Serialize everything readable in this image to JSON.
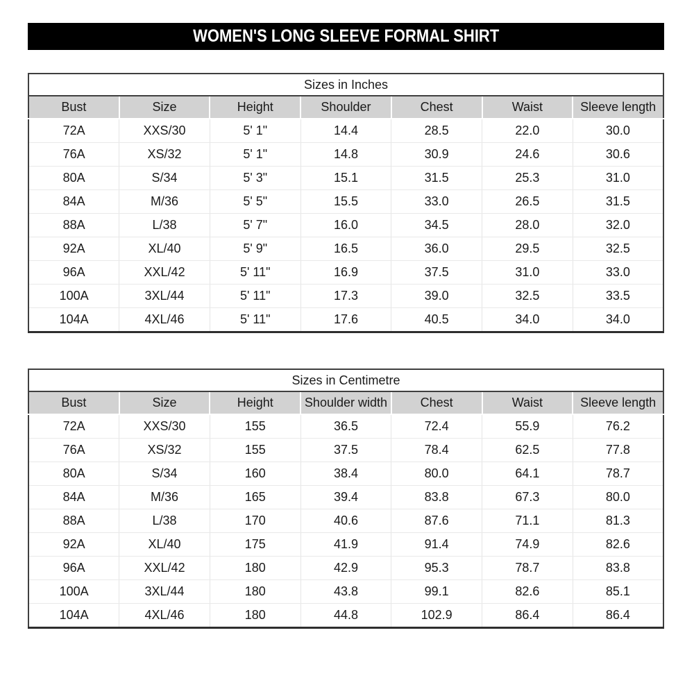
{
  "banner": {
    "title": "WOMEN'S LONG SLEEVE FORMAL SHIRT"
  },
  "tables": [
    {
      "id": "inches",
      "caption": "Sizes in Inches",
      "columns": [
        "Bust",
        "Size",
        "Height",
        "Shoulder",
        "Chest",
        "Waist",
        "Sleeve length"
      ],
      "rows": [
        [
          "72A",
          "XXS/30",
          "5' 1\"",
          "14.4",
          "28.5",
          "22.0",
          "30.0"
        ],
        [
          "76A",
          "XS/32",
          "5' 1\"",
          "14.8",
          "30.9",
          "24.6",
          "30.6"
        ],
        [
          "80A",
          "S/34",
          "5' 3\"",
          "15.1",
          "31.5",
          "25.3",
          "31.0"
        ],
        [
          "84A",
          "M/36",
          "5' 5\"",
          "15.5",
          "33.0",
          "26.5",
          "31.5"
        ],
        [
          "88A",
          "L/38",
          "5' 7\"",
          "16.0",
          "34.5",
          "28.0",
          "32.0"
        ],
        [
          "92A",
          "XL/40",
          "5' 9\"",
          "16.5",
          "36.0",
          "29.5",
          "32.5"
        ],
        [
          "96A",
          "XXL/42",
          "5' 11\"",
          "16.9",
          "37.5",
          "31.0",
          "33.0"
        ],
        [
          "100A",
          "3XL/44",
          "5' 11\"",
          "17.3",
          "39.0",
          "32.5",
          "33.5"
        ],
        [
          "104A",
          "4XL/46",
          "5' 11\"",
          "17.6",
          "40.5",
          "34.0",
          "34.0"
        ]
      ]
    },
    {
      "id": "centimetre",
      "caption": "Sizes in Centimetre",
      "columns": [
        "Bust",
        "Size",
        "Height",
        "Shoulder width",
        "Chest",
        "Waist",
        "Sleeve length"
      ],
      "rows": [
        [
          "72A",
          "XXS/30",
          "155",
          "36.5",
          "72.4",
          "55.9",
          "76.2"
        ],
        [
          "76A",
          "XS/32",
          "155",
          "37.5",
          "78.4",
          "62.5",
          "77.8"
        ],
        [
          "80A",
          "S/34",
          "160",
          "38.4",
          "80.0",
          "64.1",
          "78.7"
        ],
        [
          "84A",
          "M/36",
          "165",
          "39.4",
          "83.8",
          "67.3",
          "80.0"
        ],
        [
          "88A",
          "L/38",
          "170",
          "40.6",
          "87.6",
          "71.1",
          "81.3"
        ],
        [
          "92A",
          "XL/40",
          "175",
          "41.9",
          "91.4",
          "74.9",
          "82.6"
        ],
        [
          "96A",
          "XXL/42",
          "180",
          "42.9",
          "95.3",
          "78.7",
          "83.8"
        ],
        [
          "100A",
          "3XL/44",
          "180",
          "43.8",
          "99.1",
          "82.6",
          "85.1"
        ],
        [
          "104A",
          "4XL/46",
          "180",
          "44.8",
          "102.9",
          "86.4",
          "86.4"
        ]
      ]
    }
  ],
  "colors": {
    "banner_bg": "#000000",
    "banner_text": "#ffffff",
    "header_bg": "#d2d2d2",
    "border_dark": "#3f3f3f",
    "grid_light": "#e5e5e5",
    "text": "#1a1a1a"
  }
}
